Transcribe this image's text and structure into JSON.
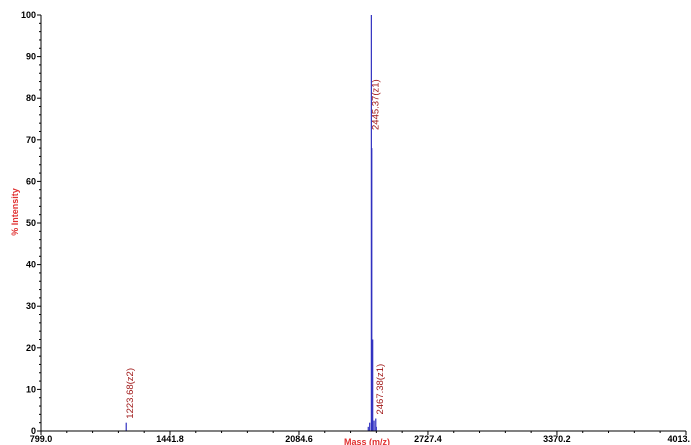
{
  "chart_data": {
    "type": "line",
    "title": "",
    "xlabel": "Mass (m/z)",
    "ylabel": "% Intensity",
    "xlim": [
      799.0,
      4013.4
    ],
    "ylim": [
      0,
      100
    ],
    "x_ticks": [
      799.0,
      1441.8,
      2084.6,
      2727.4,
      3370.2,
      4013.4
    ],
    "x_tick_labels": [
      "799.0",
      "1441.8",
      "2084.6",
      "2727.4",
      "3370.2",
      "4013."
    ],
    "y_ticks": [
      0,
      10,
      20,
      30,
      40,
      50,
      60,
      70,
      80,
      90,
      100
    ],
    "y_tick_labels": [
      "0",
      "10",
      "20",
      "30",
      "40",
      "50",
      "60",
      "70",
      "80",
      "90",
      "100"
    ],
    "grid": false,
    "series": [
      {
        "x": [
          1223.68,
          2430.0,
          2437.0,
          2445.37,
          2447.5,
          2452.0,
          2459.0,
          2467.38,
          2470.0
        ],
        "y": [
          2,
          1.0,
          2.0,
          100,
          68,
          22,
          2.5,
          3,
          1
        ]
      }
    ],
    "annotations": [
      {
        "x": 1223.68,
        "y": 2,
        "text": "1223.68(z2)"
      },
      {
        "x": 2445.37,
        "y": 100,
        "text": "2445.37(z1)"
      },
      {
        "x": 2467.38,
        "y": 3,
        "text": "2467.38(z1)"
      }
    ],
    "colors": {
      "trace": "#3030c0",
      "axis_title": "#e03030",
      "annotation": "#a01818",
      "axis": "#000000"
    }
  }
}
